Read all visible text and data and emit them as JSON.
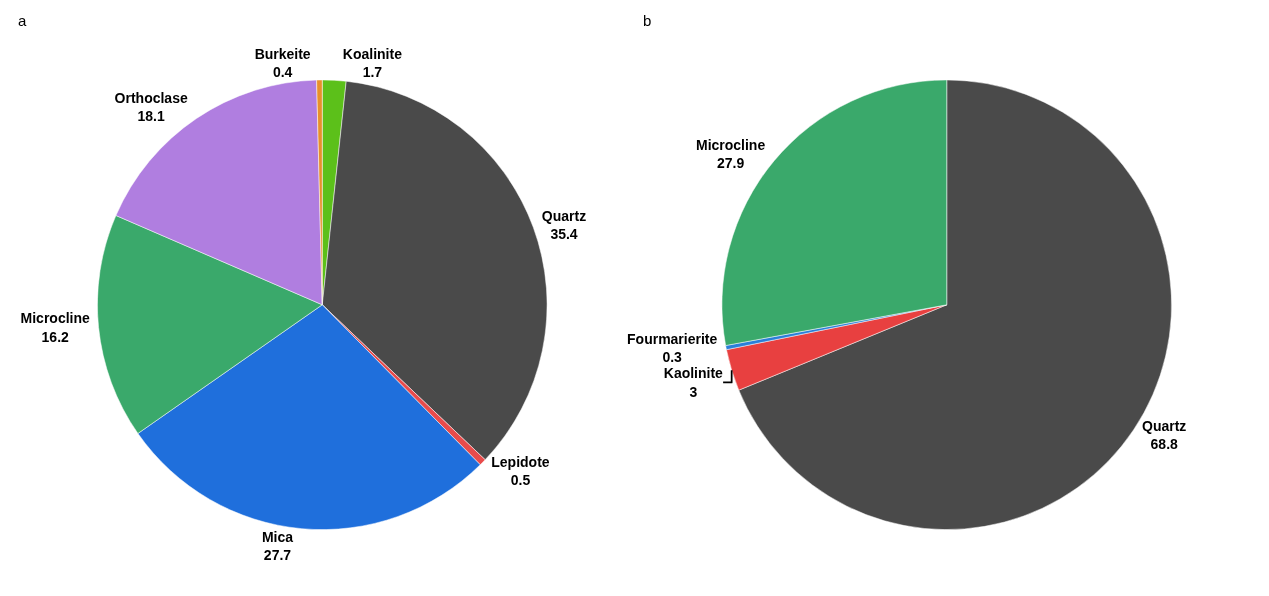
{
  "chart_data": [
    {
      "type": "pie",
      "title": "a",
      "categories": [
        "Koalinite",
        "Quartz",
        "Lepidote",
        "Mica",
        "Microcline",
        "Orthoclase",
        "Burkeite"
      ],
      "values": [
        1.7,
        35.4,
        0.5,
        27.7,
        16.2,
        18.1,
        0.4
      ],
      "colors": [
        "#5cc01a",
        "#4a4a4a",
        "#e84b4b",
        "#1f6fdc",
        "#3aa96b",
        "#b07ee0",
        "#e8902a"
      ],
      "data_labels": true
    },
    {
      "type": "pie",
      "title": "b",
      "categories": [
        "Quartz",
        "Kaolinite",
        "Fourmarierite",
        "Microcline"
      ],
      "values": [
        68.8,
        3,
        0.3,
        27.9
      ],
      "colors": [
        "#4a4a4a",
        "#e84040",
        "#2a7fd9",
        "#3aa96b"
      ],
      "data_labels": true
    }
  ]
}
